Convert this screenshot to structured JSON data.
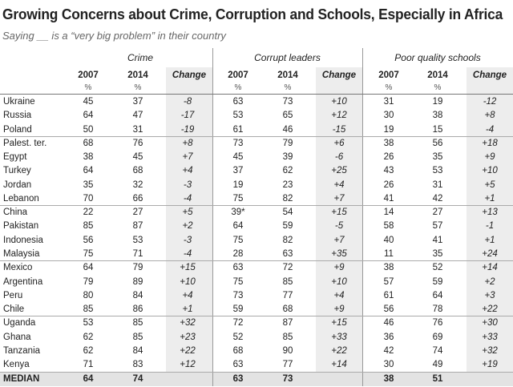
{
  "title": "Growing Concerns about Crime, Corruption and Schools, Especially in Africa",
  "subtitle": "Saying __ is a “very big problem” in their country",
  "chart_data": {
    "type": "table",
    "groups": [
      "Crime",
      "Corrupt leaders",
      "Poor quality schools"
    ],
    "subheaders": [
      "2007",
      "2014",
      "Change"
    ],
    "unit": "%",
    "rows": [
      {
        "country": "Ukraine",
        "values": [
          "45",
          "37",
          "-8",
          "63",
          "73",
          "+10",
          "31",
          "19",
          "-12"
        ]
      },
      {
        "country": "Russia",
        "values": [
          "64",
          "47",
          "-17",
          "53",
          "65",
          "+12",
          "30",
          "38",
          "+8"
        ]
      },
      {
        "country": "Poland",
        "values": [
          "50",
          "31",
          "-19",
          "61",
          "46",
          "-15",
          "19",
          "15",
          "-4"
        ]
      },
      {
        "country": "Palest. ter.",
        "values": [
          "68",
          "76",
          "+8",
          "73",
          "79",
          "+6",
          "38",
          "56",
          "+18"
        ]
      },
      {
        "country": "Egypt",
        "values": [
          "38",
          "45",
          "+7",
          "45",
          "39",
          "-6",
          "26",
          "35",
          "+9"
        ]
      },
      {
        "country": "Turkey",
        "values": [
          "64",
          "68",
          "+4",
          "37",
          "62",
          "+25",
          "43",
          "53",
          "+10"
        ]
      },
      {
        "country": "Jordan",
        "values": [
          "35",
          "32",
          "-3",
          "19",
          "23",
          "+4",
          "26",
          "31",
          "+5"
        ]
      },
      {
        "country": "Lebanon",
        "values": [
          "70",
          "66",
          "-4",
          "75",
          "82",
          "+7",
          "41",
          "42",
          "+1"
        ]
      },
      {
        "country": "China",
        "values": [
          "22",
          "27",
          "+5",
          "39*",
          "54",
          "+15",
          "14",
          "27",
          "+13"
        ]
      },
      {
        "country": "Pakistan",
        "values": [
          "85",
          "87",
          "+2",
          "64",
          "59",
          "-5",
          "58",
          "57",
          "-1"
        ]
      },
      {
        "country": "Indonesia",
        "values": [
          "56",
          "53",
          "-3",
          "75",
          "82",
          "+7",
          "40",
          "41",
          "+1"
        ]
      },
      {
        "country": "Malaysia",
        "values": [
          "75",
          "71",
          "-4",
          "28",
          "63",
          "+35",
          "11",
          "35",
          "+24"
        ]
      },
      {
        "country": "Mexico",
        "values": [
          "64",
          "79",
          "+15",
          "63",
          "72",
          "+9",
          "38",
          "52",
          "+14"
        ]
      },
      {
        "country": "Argentina",
        "values": [
          "79",
          "89",
          "+10",
          "75",
          "85",
          "+10",
          "57",
          "59",
          "+2"
        ]
      },
      {
        "country": "Peru",
        "values": [
          "80",
          "84",
          "+4",
          "73",
          "77",
          "+4",
          "61",
          "64",
          "+3"
        ]
      },
      {
        "country": "Chile",
        "values": [
          "85",
          "86",
          "+1",
          "59",
          "68",
          "+9",
          "56",
          "78",
          "+22"
        ]
      },
      {
        "country": "Uganda",
        "values": [
          "53",
          "85",
          "+32",
          "72",
          "87",
          "+15",
          "46",
          "76",
          "+30"
        ]
      },
      {
        "country": "Ghana",
        "values": [
          "62",
          "85",
          "+23",
          "52",
          "85",
          "+33",
          "36",
          "69",
          "+33"
        ]
      },
      {
        "country": "Tanzania",
        "values": [
          "62",
          "84",
          "+22",
          "68",
          "90",
          "+22",
          "42",
          "74",
          "+32"
        ]
      },
      {
        "country": "Kenya",
        "values": [
          "71",
          "83",
          "+12",
          "63",
          "77",
          "+14",
          "30",
          "49",
          "+19"
        ]
      }
    ],
    "median": {
      "label": "MEDIAN",
      "values": [
        "64",
        "74",
        "",
        "63",
        "73",
        "",
        "38",
        "51",
        ""
      ]
    }
  }
}
